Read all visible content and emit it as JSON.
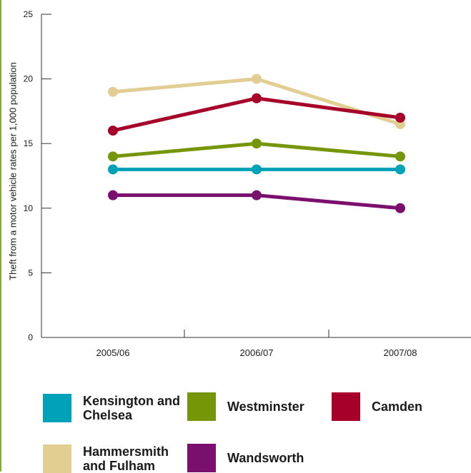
{
  "chart_data": {
    "type": "line",
    "title": "",
    "xlabel": "",
    "ylabel": "Theft from a motor vehicle rates per 1,000 population",
    "categories": [
      "2005/06",
      "2006/07",
      "2007/08"
    ],
    "ylim": [
      0,
      25
    ],
    "yticks": [
      0,
      5,
      10,
      15,
      20,
      25
    ],
    "grid": false,
    "legend_position": "bottom",
    "series": [
      {
        "name": "Hammersmith and Fulham",
        "color": "#e2cd93",
        "values": [
          19,
          20,
          16.5
        ]
      },
      {
        "name": "Camden",
        "color": "#a6002a",
        "values": [
          16,
          18.5,
          17
        ]
      },
      {
        "name": "Westminster",
        "color": "#76960a",
        "values": [
          14,
          15,
          14
        ]
      },
      {
        "name": "Kensington and Chelsea",
        "color": "#00a2b8",
        "values": [
          13,
          13,
          13
        ]
      },
      {
        "name": "Wandsworth",
        "color": "#7a0f6e",
        "values": [
          11,
          11,
          10
        ]
      }
    ]
  },
  "legend": {
    "kensington": "Kensington and Chelsea",
    "westminster": "Westminster",
    "camden": "Camden",
    "hammersmith": "Hammersmith and Fulham",
    "wandsworth": "Wandsworth"
  }
}
